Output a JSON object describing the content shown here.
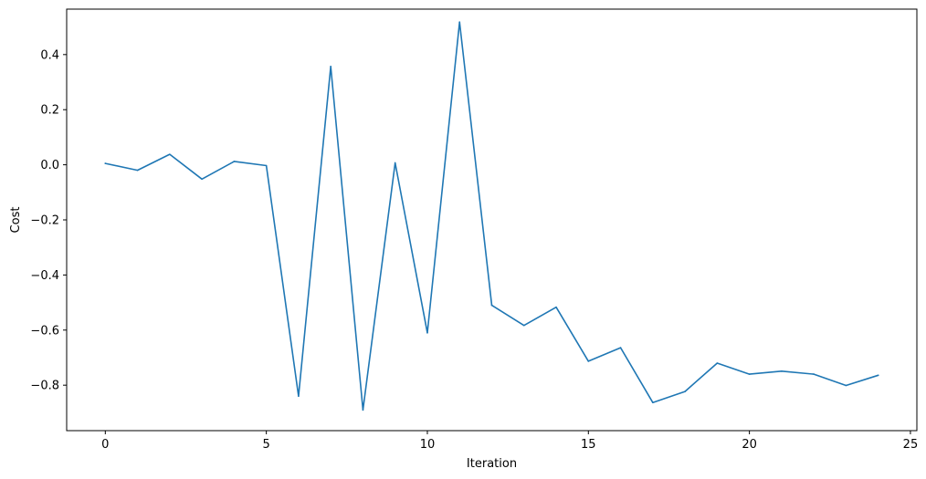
{
  "chart_data": {
    "type": "line",
    "title": "",
    "xlabel": "Iteration",
    "ylabel": "Cost",
    "xlim": [
      -1.2,
      25.2
    ],
    "ylim": [
      -0.965,
      0.565
    ],
    "xticks": [
      0,
      5,
      10,
      15,
      20,
      25
    ],
    "xtick_labels": [
      "0",
      "5",
      "10",
      "15",
      "20",
      "25"
    ],
    "yticks": [
      -0.8,
      -0.6,
      -0.4,
      -0.2,
      0.0,
      0.2,
      0.4
    ],
    "ytick_labels": [
      "−0.8",
      "−0.6",
      "−0.4",
      "−0.2",
      "0.0",
      "0.2",
      "0.4"
    ],
    "grid": false,
    "series": [
      {
        "color": "#1f77b4",
        "x": [
          0,
          1,
          2,
          3,
          4,
          5,
          6,
          7,
          8,
          9,
          10,
          11,
          12,
          13,
          14,
          15,
          16,
          17,
          18,
          19,
          20,
          21,
          22,
          23,
          24
        ],
        "y": [
          0.005,
          -0.02,
          0.038,
          -0.052,
          0.012,
          -0.003,
          -0.84,
          0.357,
          -0.89,
          0.007,
          -0.61,
          0.518,
          -0.51,
          -0.583,
          -0.517,
          -0.713,
          -0.664,
          -0.863,
          -0.823,
          -0.72,
          -0.76,
          -0.749,
          -0.76,
          -0.801,
          -0.764
        ]
      }
    ]
  }
}
